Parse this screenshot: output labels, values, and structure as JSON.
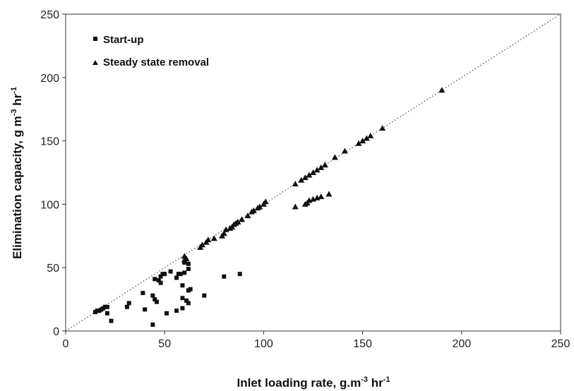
{
  "chart_data": {
    "type": "scatter",
    "title": "",
    "xlabel": {
      "text": "Inlet loading rate, g.m",
      "sup1": "-3",
      "mid": " hr",
      "sup2": "-1"
    },
    "ylabel": {
      "text": "Elimination capacity, g m",
      "sup1": "-3",
      "mid": " hr",
      "sup2": "-1"
    },
    "xlim": [
      0,
      250
    ],
    "ylim": [
      0,
      250
    ],
    "xticks": [
      "0",
      "50",
      "100",
      "150",
      "200",
      "250"
    ],
    "yticks": [
      "0",
      "50",
      "100",
      "150",
      "200",
      "250"
    ],
    "grid": false,
    "legend_position": "top-left",
    "reference_line": {
      "style": "dotted",
      "from": [
        0,
        0
      ],
      "to": [
        250,
        250
      ]
    },
    "series": [
      {
        "name": "Start-up",
        "marker": "square",
        "color": "#111111",
        "points": [
          [
            15,
            15
          ],
          [
            16,
            16
          ],
          [
            17,
            16
          ],
          [
            18,
            17
          ],
          [
            19,
            18
          ],
          [
            20,
            19
          ],
          [
            21,
            19
          ],
          [
            21,
            14
          ],
          [
            23,
            8
          ],
          [
            31,
            19
          ],
          [
            32,
            22
          ],
          [
            39,
            30
          ],
          [
            40,
            17
          ],
          [
            44,
            28
          ],
          [
            44,
            5
          ],
          [
            45,
            41
          ],
          [
            45,
            25
          ],
          [
            46,
            23
          ],
          [
            47,
            40
          ],
          [
            48,
            38
          ],
          [
            48,
            43
          ],
          [
            49,
            45
          ],
          [
            50,
            45
          ],
          [
            51,
            14
          ],
          [
            53,
            47
          ],
          [
            56,
            16
          ],
          [
            56,
            42
          ],
          [
            57,
            45
          ],
          [
            58,
            45
          ],
          [
            59,
            36
          ],
          [
            59,
            26
          ],
          [
            59,
            18
          ],
          [
            60,
            46
          ],
          [
            60,
            54
          ],
          [
            61,
            24
          ],
          [
            62,
            53
          ],
          [
            62,
            22
          ],
          [
            62,
            32
          ],
          [
            62,
            49
          ],
          [
            63,
            33
          ],
          [
            70,
            28
          ],
          [
            80,
            43
          ],
          [
            88,
            45
          ]
        ]
      },
      {
        "name": "Steady state removal",
        "marker": "triangle",
        "color": "#111111",
        "points": [
          [
            60,
            56
          ],
          [
            60,
            59
          ],
          [
            61,
            57
          ],
          [
            68,
            66
          ],
          [
            69,
            68
          ],
          [
            71,
            70
          ],
          [
            72,
            72
          ],
          [
            75,
            73
          ],
          [
            79,
            75
          ],
          [
            80,
            77
          ],
          [
            81,
            80
          ],
          [
            83,
            81
          ],
          [
            84,
            82
          ],
          [
            85,
            84
          ],
          [
            86,
            85
          ],
          [
            87,
            86
          ],
          [
            89,
            88
          ],
          [
            92,
            91
          ],
          [
            94,
            94
          ],
          [
            95,
            95
          ],
          [
            97,
            97
          ],
          [
            98,
            98
          ],
          [
            100,
            100
          ],
          [
            101,
            102
          ],
          [
            116,
            116
          ],
          [
            119,
            119
          ],
          [
            121,
            121
          ],
          [
            123,
            123
          ],
          [
            125,
            125
          ],
          [
            127,
            127
          ],
          [
            129,
            129
          ],
          [
            131,
            131
          ],
          [
            136,
            137
          ],
          [
            141,
            142
          ],
          [
            148,
            148
          ],
          [
            150,
            150
          ],
          [
            152,
            152
          ],
          [
            154,
            154
          ],
          [
            160,
            160
          ],
          [
            190,
            190
          ],
          [
            116,
            98
          ],
          [
            121,
            100
          ],
          [
            122,
            101
          ],
          [
            123,
            103
          ],
          [
            125,
            104
          ],
          [
            127,
            105
          ],
          [
            129,
            106
          ],
          [
            133,
            108
          ]
        ]
      }
    ]
  }
}
